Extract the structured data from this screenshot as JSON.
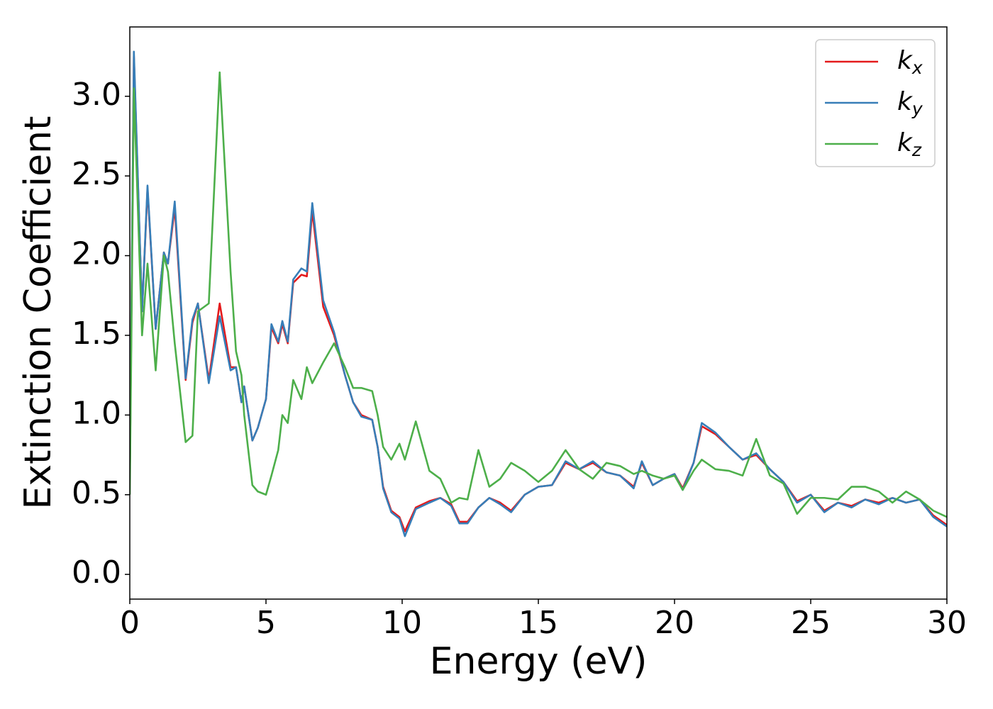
{
  "chart_data": {
    "type": "line",
    "xlabel": "Energy (eV)",
    "ylabel": "Extinction Coefficient",
    "xlim": [
      0,
      30
    ],
    "ylim": [
      -0.155,
      3.435
    ],
    "xticks": [
      0,
      5,
      10,
      15,
      20,
      25,
      30
    ],
    "yticks": [
      {
        "value": 0,
        "label": "0.0"
      },
      {
        "value": 0.5,
        "label": "0.5"
      },
      {
        "value": 1,
        "label": "1.0"
      },
      {
        "value": 1.5,
        "label": "1.5"
      },
      {
        "value": 2,
        "label": "2.0"
      },
      {
        "value": 2.5,
        "label": "2.5"
      },
      {
        "value": 3,
        "label": "3.0"
      }
    ],
    "legend_position": "upper right",
    "x": [
      0,
      0.15,
      0.45,
      0.65,
      0.95,
      1.25,
      1.4,
      1.65,
      2.05,
      2.3,
      2.5,
      2.9,
      3.3,
      3.7,
      3.9,
      4.1,
      4.2,
      4.5,
      4.7,
      5.0,
      5.2,
      5.45,
      5.6,
      5.8,
      6.0,
      6.3,
      6.5,
      6.7,
      7.1,
      7.5,
      7.9,
      8.2,
      8.5,
      8.9,
      9.1,
      9.3,
      9.6,
      9.9,
      10.1,
      10.5,
      11.0,
      11.4,
      11.8,
      12.1,
      12.4,
      12.8,
      13.2,
      13.6,
      14.0,
      14.5,
      15.0,
      15.5,
      16.0,
      16.5,
      17.0,
      17.5,
      18.0,
      18.5,
      18.8,
      19.2,
      19.6,
      20.0,
      20.3,
      20.7,
      21.0,
      21.5,
      22.0,
      22.5,
      23.0,
      23.5,
      24.0,
      24.5,
      25.0,
      25.5,
      26.0,
      26.5,
      27.0,
      27.5,
      28.0,
      28.5,
      29.0,
      29.5,
      30.0
    ],
    "series": [
      {
        "name": "kx",
        "color": "#e41a1c",
        "values": [
          0.6,
          3.25,
          1.65,
          2.42,
          1.54,
          2.02,
          1.95,
          2.3,
          1.22,
          1.58,
          1.7,
          1.22,
          1.7,
          1.3,
          1.3,
          1.08,
          1.18,
          0.84,
          0.92,
          1.1,
          1.55,
          1.45,
          1.57,
          1.45,
          1.83,
          1.88,
          1.87,
          2.28,
          1.68,
          1.5,
          1.25,
          1.08,
          1.0,
          0.97,
          0.8,
          0.55,
          0.4,
          0.36,
          0.27,
          0.42,
          0.46,
          0.48,
          0.44,
          0.33,
          0.33,
          0.42,
          0.48,
          0.45,
          0.4,
          0.5,
          0.55,
          0.56,
          0.7,
          0.66,
          0.7,
          0.64,
          0.62,
          0.55,
          0.7,
          0.56,
          0.6,
          0.63,
          0.54,
          0.7,
          0.93,
          0.88,
          0.8,
          0.72,
          0.75,
          0.66,
          0.58,
          0.46,
          0.5,
          0.4,
          0.45,
          0.43,
          0.47,
          0.45,
          0.48,
          0.45,
          0.47,
          0.37,
          0.31
        ]
      },
      {
        "name": "ky",
        "color": "#377eb8",
        "values": [
          0.6,
          3.28,
          1.65,
          2.44,
          1.54,
          2.02,
          1.95,
          2.34,
          1.23,
          1.6,
          1.7,
          1.2,
          1.62,
          1.28,
          1.3,
          1.08,
          1.18,
          0.84,
          0.92,
          1.1,
          1.57,
          1.46,
          1.59,
          1.46,
          1.85,
          1.92,
          1.9,
          2.33,
          1.72,
          1.52,
          1.25,
          1.08,
          0.99,
          0.97,
          0.8,
          0.54,
          0.39,
          0.35,
          0.24,
          0.41,
          0.45,
          0.48,
          0.43,
          0.32,
          0.32,
          0.42,
          0.48,
          0.44,
          0.39,
          0.5,
          0.55,
          0.56,
          0.71,
          0.66,
          0.71,
          0.64,
          0.62,
          0.54,
          0.71,
          0.56,
          0.6,
          0.63,
          0.53,
          0.7,
          0.95,
          0.89,
          0.8,
          0.72,
          0.76,
          0.66,
          0.58,
          0.45,
          0.5,
          0.39,
          0.45,
          0.42,
          0.47,
          0.44,
          0.48,
          0.45,
          0.47,
          0.36,
          0.3
        ]
      },
      {
        "name": "kz",
        "color": "#4daf4a",
        "values": [
          0.5,
          3.05,
          1.5,
          1.95,
          1.28,
          2.0,
          1.9,
          1.45,
          0.83,
          0.87,
          1.65,
          1.7,
          3.15,
          1.9,
          1.4,
          1.25,
          1.0,
          0.56,
          0.52,
          0.5,
          0.62,
          0.78,
          1.0,
          0.95,
          1.22,
          1.1,
          1.3,
          1.2,
          1.33,
          1.45,
          1.3,
          1.17,
          1.17,
          1.15,
          1.0,
          0.8,
          0.72,
          0.82,
          0.72,
          0.96,
          0.65,
          0.6,
          0.45,
          0.48,
          0.47,
          0.78,
          0.55,
          0.6,
          0.7,
          0.65,
          0.58,
          0.65,
          0.78,
          0.66,
          0.6,
          0.7,
          0.68,
          0.63,
          0.65,
          0.62,
          0.6,
          0.62,
          0.53,
          0.65,
          0.72,
          0.66,
          0.65,
          0.62,
          0.85,
          0.62,
          0.57,
          0.38,
          0.48,
          0.48,
          0.47,
          0.55,
          0.55,
          0.52,
          0.45,
          0.52,
          0.47,
          0.4,
          0.36
        ]
      }
    ]
  }
}
